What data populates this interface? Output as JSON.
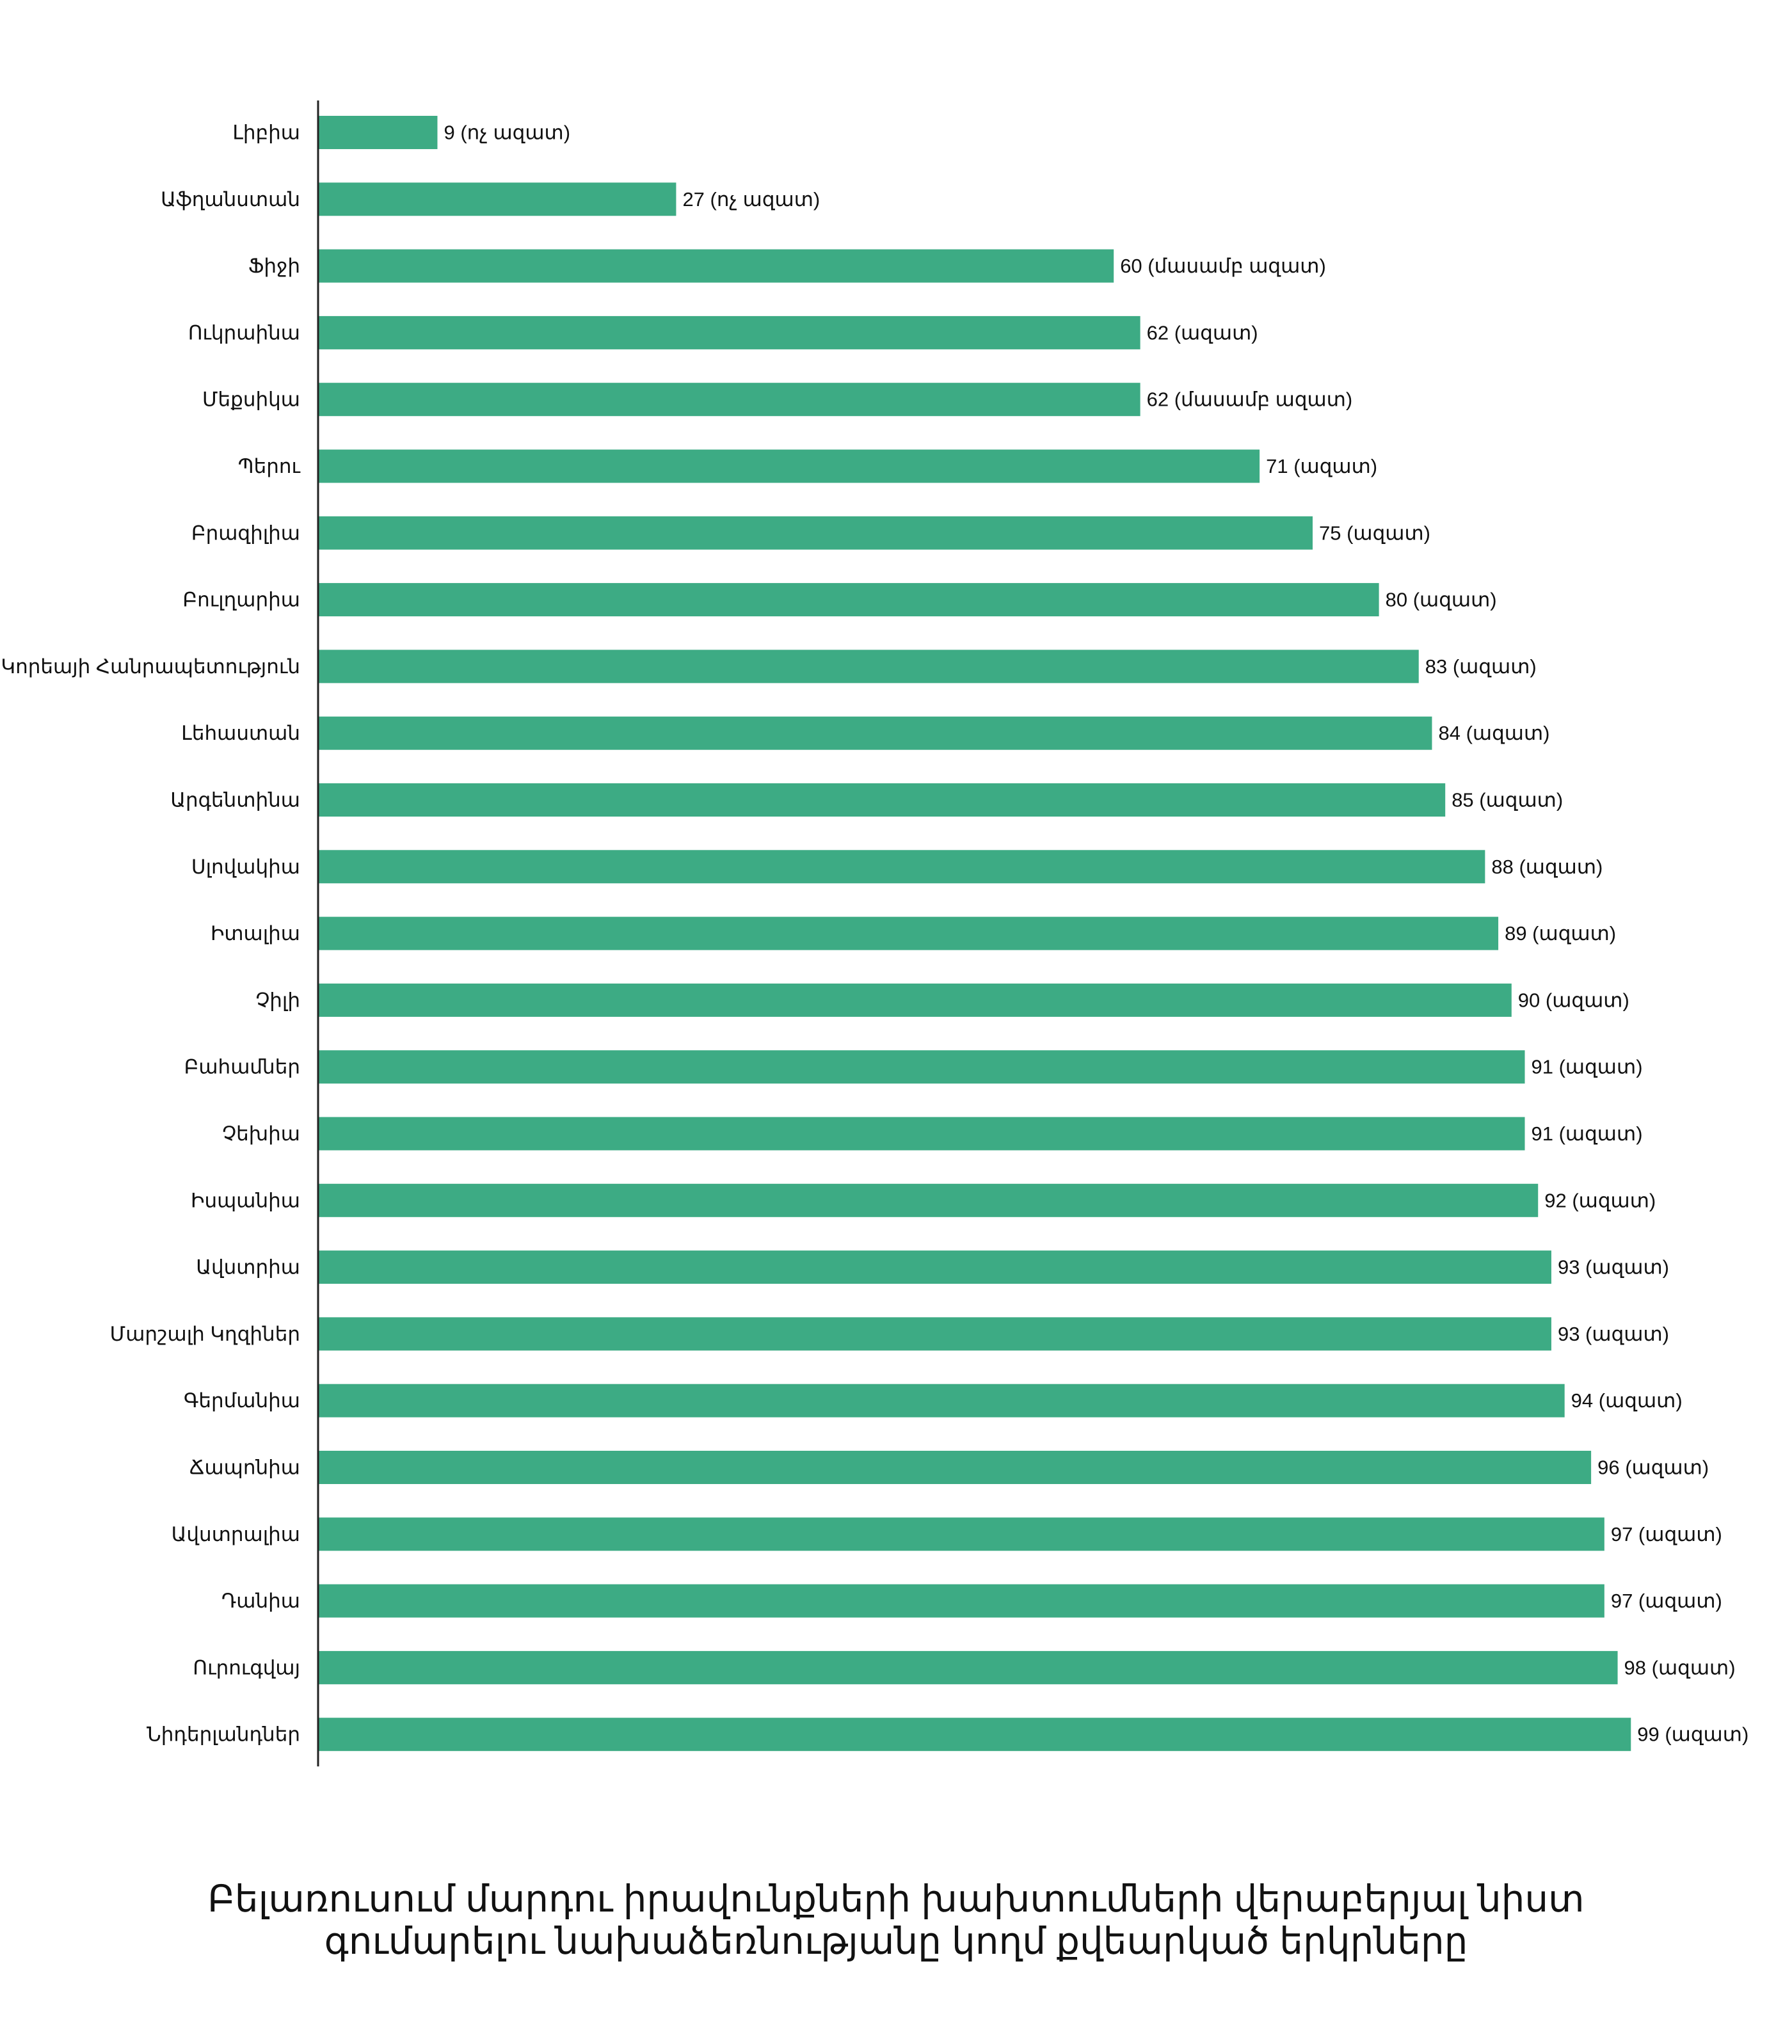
{
  "chart_data": {
    "type": "bar",
    "orientation": "horizontal",
    "title": "",
    "xlabel": "",
    "ylabel": "",
    "xlim": [
      0,
      100
    ],
    "grid": false,
    "bar_color": "#3dab84",
    "categories": [
      "Լիբիա",
      "Աֆղանստան",
      "Ֆիջի",
      "Ուկրաինա",
      "Մեքսիկա",
      "Պերու",
      "Բրազիլիա",
      "Բուլղարիա",
      "Կորեայի Հանրապետություն",
      "Լեհաստան",
      "Արգենտինա",
      "Սլովակիա",
      "Իտալիա",
      "Չիլի",
      "Բահամներ",
      "Չեխիա",
      "Իսպանիա",
      "Ավստրիա",
      "Մարշալի Կղզիներ",
      "Գերմանիա",
      "Ճապոնիա",
      "Ավստրալիա",
      "Դանիա",
      "Ուրուգվայ",
      "Նիդերլանդներ"
    ],
    "values": [
      9,
      27,
      60,
      62,
      62,
      71,
      75,
      80,
      83,
      84,
      85,
      88,
      89,
      90,
      91,
      91,
      92,
      93,
      93,
      94,
      96,
      97,
      97,
      98,
      99
    ],
    "value_labels": [
      "9 (ոչ ազատ)",
      "27 (ոչ ազատ)",
      "60 (մասամբ ազատ)",
      "62 (ազատ)",
      "62 (մասամբ ազատ)",
      "71 (ազատ)",
      "75 (ազատ)",
      "80 (ազատ)",
      "83 (ազատ)",
      "84 (ազատ)",
      "85 (ազատ)",
      "88 (ազատ)",
      "89 (ազատ)",
      "90 (ազատ)",
      "91 (ազատ)",
      "91 (ազատ)",
      "92 (ազատ)",
      "93 (ազատ)",
      "93 (ազատ)",
      "94 (ազատ)",
      "96 (ազատ)",
      "97 (ազատ)",
      "97 (ազատ)",
      "98 (ազատ)",
      "99 (ազատ)"
    ]
  },
  "caption": {
    "line1": "Բելառուսում մարդու իրավունքների խախտումների վերաբերյալ նիստ",
    "line2": "գումարելու նախաձեռնությանը կողմ քվեարկած երկրները"
  }
}
